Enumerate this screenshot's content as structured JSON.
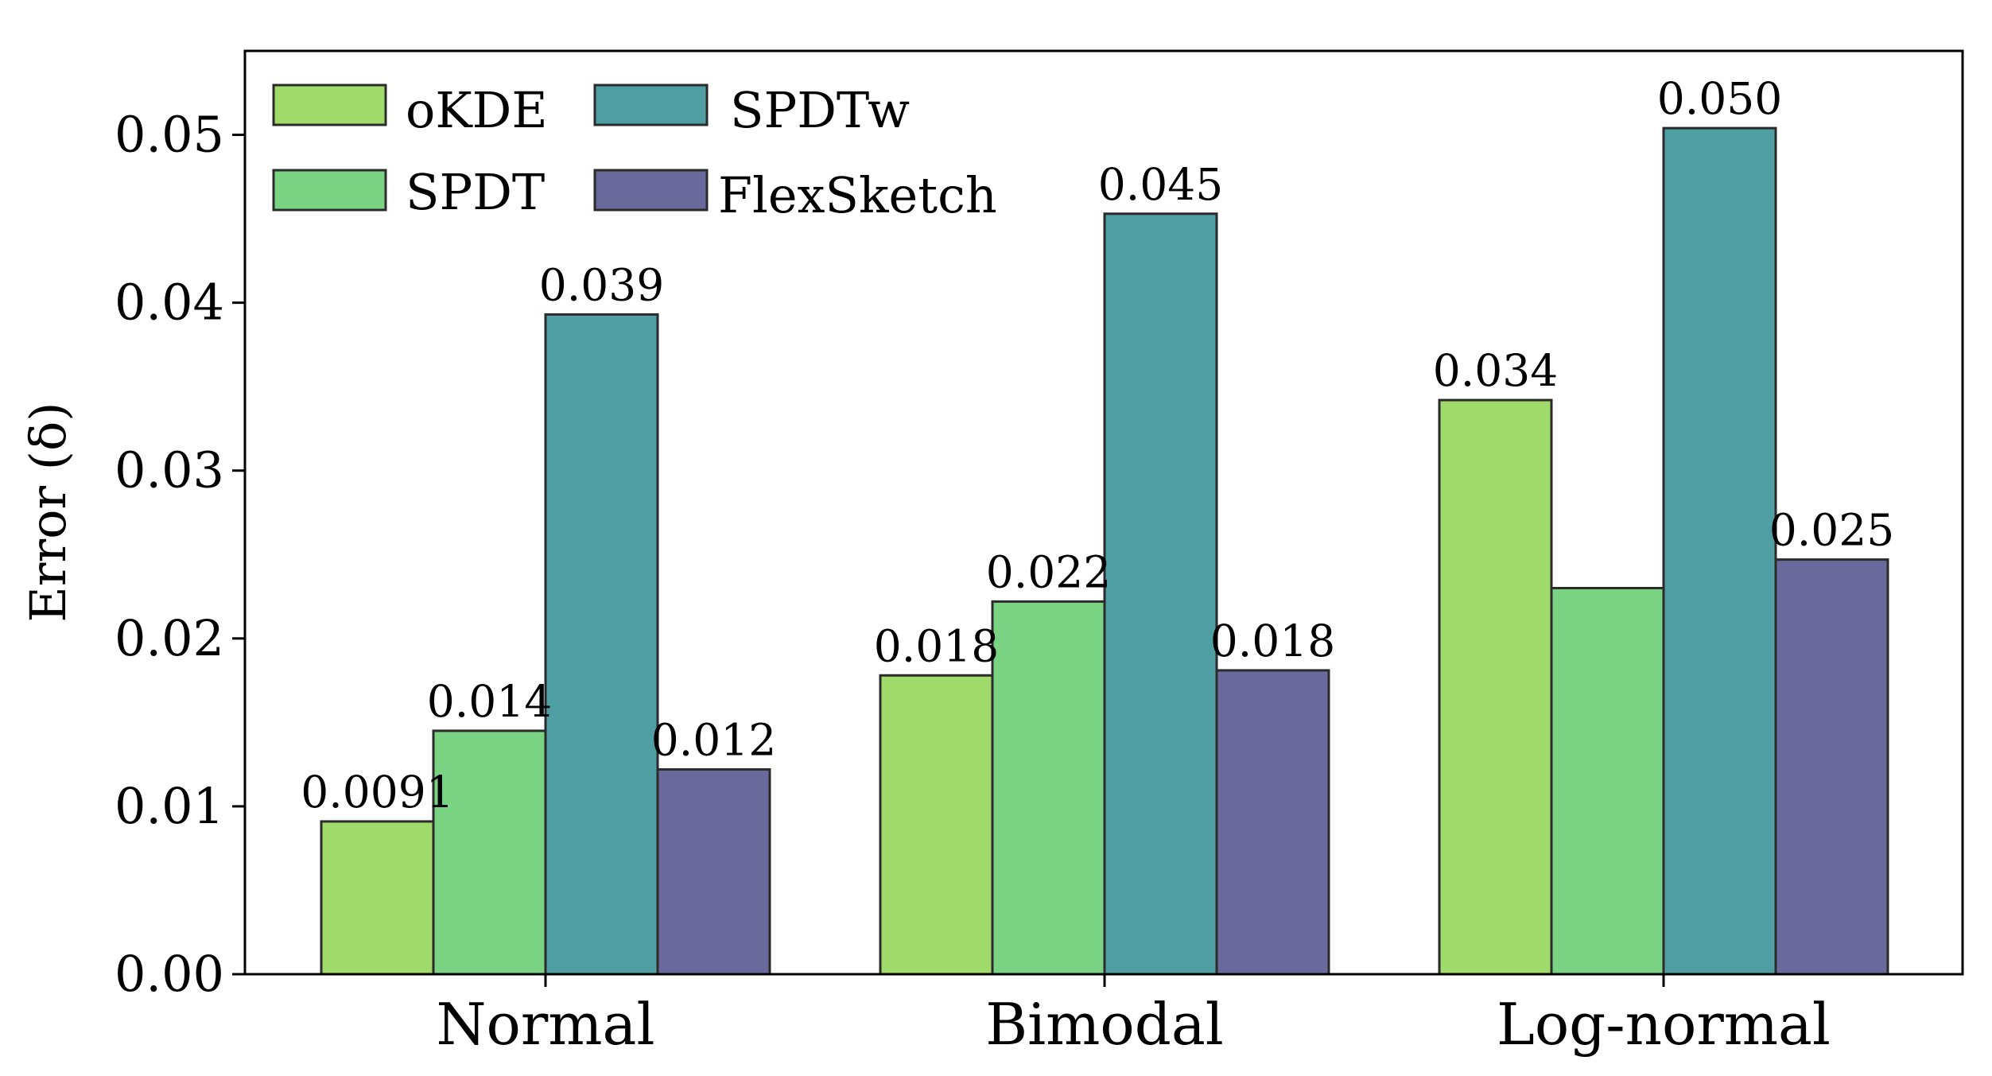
{
  "chart_data": {
    "type": "bar",
    "title": "",
    "xlabel": "",
    "ylabel": "Error (δ)",
    "ylim": [
      0,
      0.055
    ],
    "yticks": [
      {
        "value": 0.0,
        "label": "0.00"
      },
      {
        "value": 0.01,
        "label": "0.01"
      },
      {
        "value": 0.02,
        "label": "0.02"
      },
      {
        "value": 0.03,
        "label": "0.03"
      },
      {
        "value": 0.04,
        "label": "0.04"
      },
      {
        "value": 0.05,
        "label": "0.05"
      }
    ],
    "categories": [
      "Normal",
      "Bimodal",
      "Log-normal"
    ],
    "series": [
      {
        "name": "oKDE",
        "color": "#a0da6a",
        "values": [
          0.0091,
          0.0178,
          0.0342
        ],
        "labels": [
          "0.0091",
          "0.018",
          "0.034"
        ]
      },
      {
        "name": "SPDT",
        "color": "#7ad383",
        "values": [
          0.0145,
          0.0222,
          0.023
        ],
        "labels": [
          "0.014",
          "0.022",
          ""
        ]
      },
      {
        "name": "SPDTw",
        "color": "#4f9ea3",
        "values": [
          0.0393,
          0.0453,
          0.0504
        ],
        "labels": [
          "0.039",
          "0.045",
          "0.050"
        ]
      },
      {
        "name": "FlexSketch",
        "color": "#69699c",
        "values": [
          0.0122,
          0.0181,
          0.0247
        ],
        "labels": [
          "0.012",
          "0.018",
          "0.025"
        ]
      }
    ],
    "legend": {
      "placement": "upper-left",
      "columns": 2,
      "order": [
        "oKDE",
        "SPDTw",
        "SPDT",
        "FlexSketch"
      ]
    },
    "grid": false
  }
}
